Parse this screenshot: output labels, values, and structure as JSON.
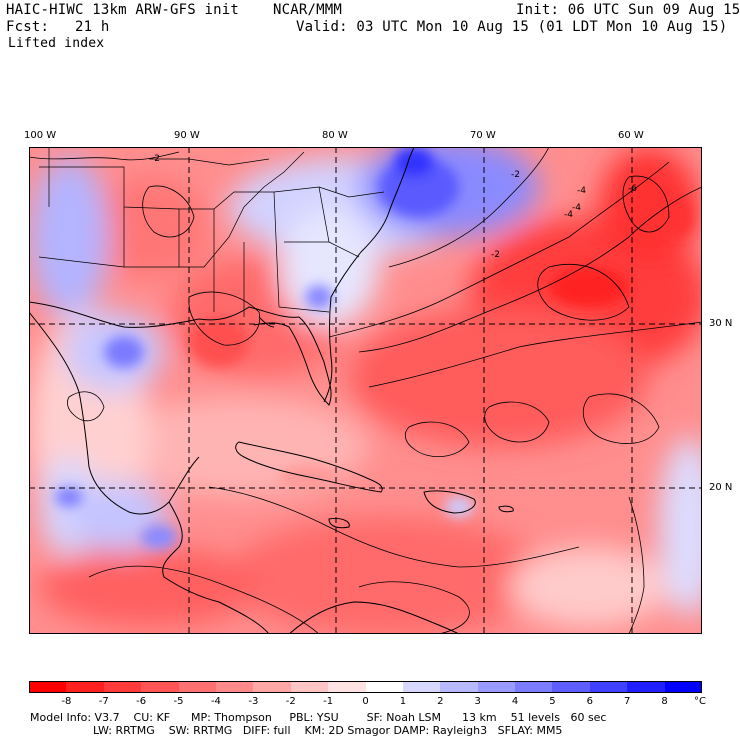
{
  "header": {
    "model": "HAIC-HIWC 13km ARW-GFS init",
    "org": "NCAR/MMM",
    "init": "Init: 06 UTC Sun 09 Aug 15",
    "fcst": "Fcst:   21 h",
    "valid": "Valid: 03 UTC Mon 10 Aug 15 (01 LDT Mon 10 Aug 15)",
    "field": "Lifted index"
  },
  "map": {
    "lon_labels": [
      "100 W",
      "90 W",
      "80 W",
      "70 W",
      "60 W"
    ],
    "lat_labels": [
      "30 N",
      "20 N"
    ],
    "contour_labels": [
      "-2",
      "-4",
      "-4",
      "-6",
      "-2",
      "-4",
      "-2"
    ]
  },
  "colorbar": {
    "labels": [
      "-8",
      "-7",
      "-6",
      "-5",
      "-4",
      "-3",
      "-2",
      "-1",
      "0",
      "1",
      "2",
      "3",
      "4",
      "5",
      "6",
      "7",
      "8",
      "°C"
    ],
    "colors": [
      "#ff0000",
      "#ff2020",
      "#ff3b3b",
      "#ff5555",
      "#ff7070",
      "#ff8a8a",
      "#ffa6a6",
      "#ffc4c4",
      "#ffe2e2",
      "#ffffff",
      "#d8d8ff",
      "#b8b8ff",
      "#9a9aff",
      "#7c7cff",
      "#5e5eff",
      "#4040ff",
      "#2020ff",
      "#0000ff"
    ]
  },
  "footer": {
    "line1": "Model Info: V3.7    CU: KF      MP: Thompson     PBL: YSU        SF: Noah LSM      13 km    51 levels   60 sec",
    "line2": "                  LW: RRTMG    SW: RRTMG   DIFF: full    KM: 2D Smagor DAMP: Rayleigh3   SFLAY: MM5"
  }
}
